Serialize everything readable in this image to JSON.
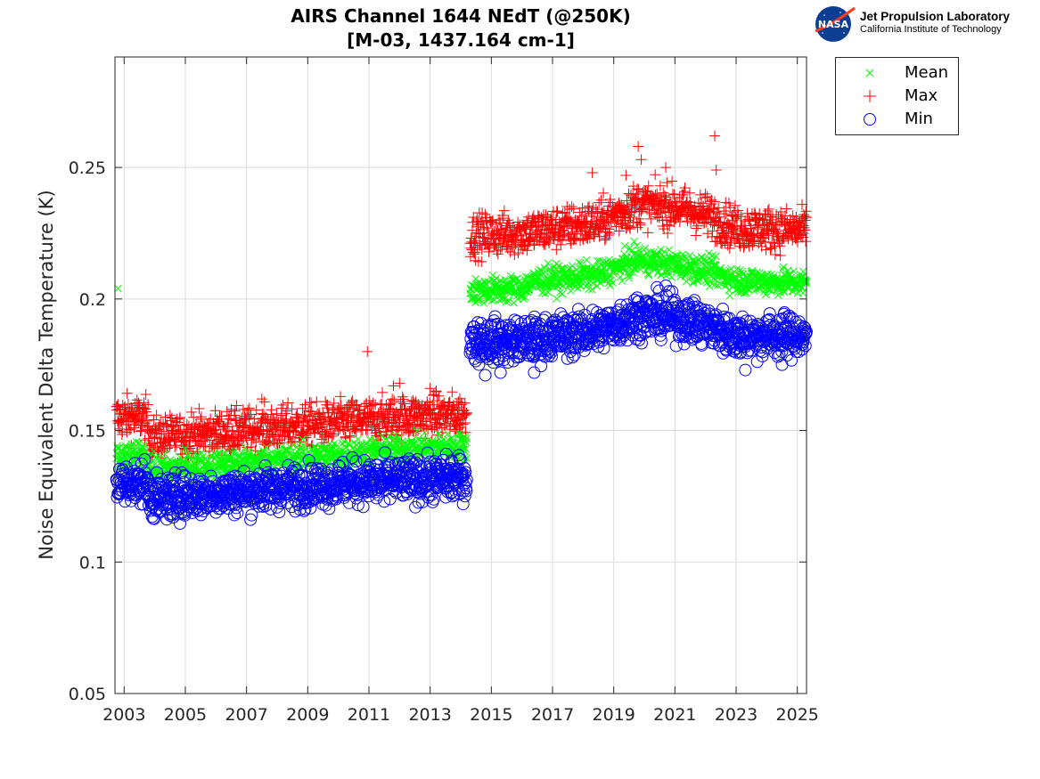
{
  "header": {
    "title_line1": "AIRS Channel 1644 NEdT (@250K)",
    "title_line2": "[M-03, 1437.164 cm-1]"
  },
  "logo": {
    "badge_text": "NASA",
    "main_text": "Jet Propulsion Laboratory",
    "sub_text": "California Institute of Technology"
  },
  "chart_data": {
    "type": "scatter",
    "title": "AIRS Channel 1644 NEdT (@250K) [M-03, 1437.164 cm-1]",
    "xlabel": "",
    "ylabel": "Noise Equivalent Delta Temperature (K)",
    "xlim": [
      2002.7,
      2025.3
    ],
    "ylim": [
      0.05,
      0.292
    ],
    "xticks": [
      2003,
      2005,
      2007,
      2009,
      2011,
      2013,
      2015,
      2017,
      2019,
      2021,
      2023,
      2025
    ],
    "xtick_labels": [
      "2003",
      "2005",
      "2007",
      "2009",
      "2011",
      "2013",
      "2015",
      "2017",
      "2019",
      "2021",
      "2023",
      "2025"
    ],
    "yticks": [
      0.05,
      0.1,
      0.15,
      0.2,
      0.25
    ],
    "ytick_labels": [
      "0.05",
      "0.1",
      "0.15",
      "0.2",
      "0.25"
    ],
    "grid": true,
    "legend_position": "outside-top-right",
    "series": [
      {
        "name": "Mean",
        "marker": "x",
        "color": "#00ff00",
        "trend": [
          {
            "x": 2002.75,
            "y": 0.143
          },
          {
            "x": 2002.9,
            "y": 0.139
          },
          {
            "x": 2003.7,
            "y": 0.141
          },
          {
            "x": 2003.9,
            "y": 0.135
          },
          {
            "x": 2006.0,
            "y": 0.137
          },
          {
            "x": 2008.0,
            "y": 0.139
          },
          {
            "x": 2010.0,
            "y": 0.141
          },
          {
            "x": 2012.0,
            "y": 0.143
          },
          {
            "x": 2014.2,
            "y": 0.144
          },
          {
            "x": 2014.3,
            "y": 0.203
          },
          {
            "x": 2016.0,
            "y": 0.204
          },
          {
            "x": 2016.5,
            "y": 0.207
          },
          {
            "x": 2018.5,
            "y": 0.209
          },
          {
            "x": 2019.8,
            "y": 0.215
          },
          {
            "x": 2021.0,
            "y": 0.213
          },
          {
            "x": 2022.0,
            "y": 0.211
          },
          {
            "x": 2023.0,
            "y": 0.207
          },
          {
            "x": 2025.3,
            "y": 0.206
          }
        ],
        "spread": 0.0025,
        "outliers": [
          {
            "x": 2002.8,
            "y": 0.204
          }
        ]
      },
      {
        "name": "Max",
        "marker": "+",
        "color": "#ff0000",
        "trend": [
          {
            "x": 2002.75,
            "y": 0.155
          },
          {
            "x": 2003.7,
            "y": 0.155
          },
          {
            "x": 2003.9,
            "y": 0.147
          },
          {
            "x": 2006.0,
            "y": 0.149
          },
          {
            "x": 2008.0,
            "y": 0.151
          },
          {
            "x": 2010.0,
            "y": 0.153
          },
          {
            "x": 2012.0,
            "y": 0.155
          },
          {
            "x": 2014.2,
            "y": 0.156
          },
          {
            "x": 2014.3,
            "y": 0.224
          },
          {
            "x": 2016.0,
            "y": 0.225
          },
          {
            "x": 2018.5,
            "y": 0.229
          },
          {
            "x": 2019.8,
            "y": 0.236
          },
          {
            "x": 2021.0,
            "y": 0.235
          },
          {
            "x": 2022.0,
            "y": 0.232
          },
          {
            "x": 2023.0,
            "y": 0.227
          },
          {
            "x": 2025.3,
            "y": 0.226
          }
        ],
        "spread": 0.004,
        "outliers": [
          {
            "x": 2010.95,
            "y": 0.18
          },
          {
            "x": 2011.8,
            "y": 0.167
          },
          {
            "x": 2012.0,
            "y": 0.168
          },
          {
            "x": 2013.0,
            "y": 0.166
          },
          {
            "x": 2013.2,
            "y": 0.165
          },
          {
            "x": 2005.2,
            "y": 0.157
          },
          {
            "x": 2006.5,
            "y": 0.158
          },
          {
            "x": 2007.5,
            "y": 0.162
          },
          {
            "x": 2018.3,
            "y": 0.248
          },
          {
            "x": 2019.8,
            "y": 0.258
          },
          {
            "x": 2019.9,
            "y": 0.253
          },
          {
            "x": 2020.7,
            "y": 0.25
          },
          {
            "x": 2022.3,
            "y": 0.262
          },
          {
            "x": 2022.35,
            "y": 0.249
          },
          {
            "x": 2019.4,
            "y": 0.247
          }
        ]
      },
      {
        "name": "Min",
        "marker": "o",
        "color": "#0000ff",
        "trend": [
          {
            "x": 2002.75,
            "y": 0.13
          },
          {
            "x": 2003.7,
            "y": 0.13
          },
          {
            "x": 2003.9,
            "y": 0.124
          },
          {
            "x": 2006.0,
            "y": 0.126
          },
          {
            "x": 2008.0,
            "y": 0.128
          },
          {
            "x": 2010.0,
            "y": 0.13
          },
          {
            "x": 2012.0,
            "y": 0.131
          },
          {
            "x": 2014.2,
            "y": 0.132
          },
          {
            "x": 2014.3,
            "y": 0.184
          },
          {
            "x": 2016.0,
            "y": 0.184
          },
          {
            "x": 2018.5,
            "y": 0.188
          },
          {
            "x": 2019.8,
            "y": 0.194
          },
          {
            "x": 2021.0,
            "y": 0.193
          },
          {
            "x": 2022.0,
            "y": 0.19
          },
          {
            "x": 2023.0,
            "y": 0.186
          },
          {
            "x": 2025.3,
            "y": 0.186
          }
        ],
        "spread": 0.004,
        "outliers": [
          {
            "x": 2004.6,
            "y": 0.117
          },
          {
            "x": 2011.5,
            "y": 0.123
          },
          {
            "x": 2014.8,
            "y": 0.171
          },
          {
            "x": 2015.3,
            "y": 0.172
          },
          {
            "x": 2016.4,
            "y": 0.172
          },
          {
            "x": 2020.7,
            "y": 0.205
          },
          {
            "x": 2023.3,
            "y": 0.173
          },
          {
            "x": 2024.5,
            "y": 0.175
          }
        ]
      }
    ]
  }
}
